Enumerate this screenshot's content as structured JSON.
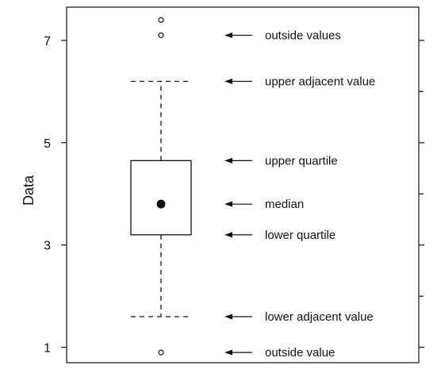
{
  "chart_data": {
    "type": "boxplot",
    "title": "",
    "xlabel": "",
    "ylabel": "Data",
    "ylim": [
      0.7,
      7.65
    ],
    "yticks": [
      1,
      3,
      5,
      7
    ],
    "grid": false,
    "series": [
      {
        "median": 3.8,
        "q1": 3.2,
        "q3": 4.65,
        "lower_adjacent": 1.6,
        "upper_adjacent": 6.2,
        "outliers": [
          7.4,
          7.1,
          0.9
        ]
      }
    ],
    "annotations": [
      {
        "text": "outside values",
        "y": 7.1
      },
      {
        "text": "upper adjacent value",
        "y": 6.2
      },
      {
        "text": "upper quartile",
        "y": 4.65
      },
      {
        "text": "median",
        "y": 3.8
      },
      {
        "text": "lower quartile",
        "y": 3.2
      },
      {
        "text": "lower adjacent value",
        "y": 1.6
      },
      {
        "text": "outside value",
        "y": 0.9
      }
    ]
  }
}
